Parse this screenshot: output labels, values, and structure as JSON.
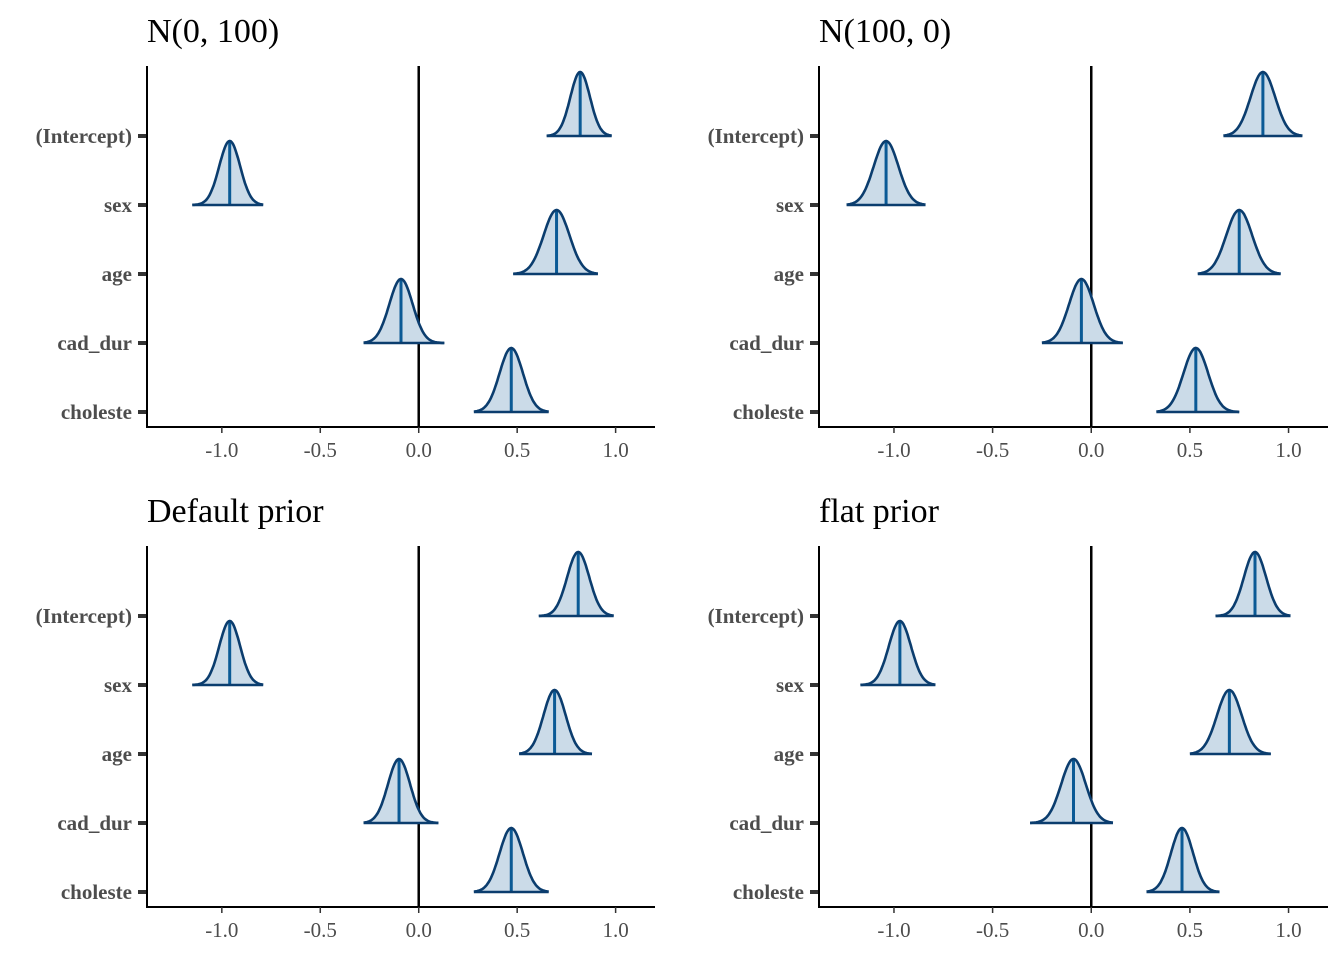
{
  "colors": {
    "fill": "#cbdbe8",
    "outline": "#0b3d6e",
    "median": "#0b5a95"
  },
  "chart_data": [
    {
      "type": "ridgeline",
      "title": "N(0, 100)",
      "categories": [
        "(Intercept)",
        "sex",
        "age",
        "cad_dur",
        "choleste"
      ],
      "xticks": [
        "-1.0",
        "-0.5",
        "0.0",
        "0.5",
        "1.0"
      ],
      "xlim": [
        -1.38,
        1.2
      ],
      "vline": 0.0,
      "distributions": [
        {
          "category": "(Intercept)",
          "median": 0.82,
          "min": 0.65,
          "max": 0.98
        },
        {
          "category": "sex",
          "median": -0.96,
          "min": -1.15,
          "max": -0.79
        },
        {
          "category": "age",
          "median": 0.7,
          "min": 0.48,
          "max": 0.91
        },
        {
          "category": "cad_dur",
          "median": -0.09,
          "min": -0.28,
          "max": 0.13
        },
        {
          "category": "choleste",
          "median": 0.47,
          "min": 0.28,
          "max": 0.66
        }
      ]
    },
    {
      "type": "ridgeline",
      "title": "N(100, 0)",
      "categories": [
        "(Intercept)",
        "sex",
        "age",
        "cad_dur",
        "choleste"
      ],
      "xticks": [
        "-1.0",
        "-0.5",
        "0.0",
        "0.5",
        "1.0"
      ],
      "xlim": [
        -1.38,
        1.2
      ],
      "vline": 0.0,
      "distributions": [
        {
          "category": "(Intercept)",
          "median": 0.87,
          "min": 0.67,
          "max": 1.07
        },
        {
          "category": "sex",
          "median": -1.04,
          "min": -1.24,
          "max": -0.84
        },
        {
          "category": "age",
          "median": 0.75,
          "min": 0.54,
          "max": 0.96
        },
        {
          "category": "cad_dur",
          "median": -0.05,
          "min": -0.25,
          "max": 0.16
        },
        {
          "category": "choleste",
          "median": 0.53,
          "min": 0.33,
          "max": 0.75
        }
      ]
    },
    {
      "type": "ridgeline",
      "title": "Default prior",
      "categories": [
        "(Intercept)",
        "sex",
        "age",
        "cad_dur",
        "choleste"
      ],
      "xticks": [
        "-1.0",
        "-0.5",
        "0.0",
        "0.5",
        "1.0"
      ],
      "xlim": [
        -1.38,
        1.2
      ],
      "vline": 0.0,
      "distributions": [
        {
          "category": "(Intercept)",
          "median": 0.81,
          "min": 0.61,
          "max": 0.99
        },
        {
          "category": "sex",
          "median": -0.96,
          "min": -1.15,
          "max": -0.79
        },
        {
          "category": "age",
          "median": 0.69,
          "min": 0.51,
          "max": 0.88
        },
        {
          "category": "cad_dur",
          "median": -0.1,
          "min": -0.28,
          "max": 0.1
        },
        {
          "category": "choleste",
          "median": 0.47,
          "min": 0.28,
          "max": 0.66
        }
      ]
    },
    {
      "type": "ridgeline",
      "title": "flat prior",
      "categories": [
        "(Intercept)",
        "sex",
        "age",
        "cad_dur",
        "choleste"
      ],
      "xticks": [
        "-1.0",
        "-0.5",
        "0.0",
        "0.5",
        "1.0"
      ],
      "xlim": [
        -1.38,
        1.2
      ],
      "vline": 0.0,
      "distributions": [
        {
          "category": "(Intercept)",
          "median": 0.83,
          "min": 0.63,
          "max": 1.01
        },
        {
          "category": "sex",
          "median": -0.97,
          "min": -1.17,
          "max": -0.79
        },
        {
          "category": "age",
          "median": 0.7,
          "min": 0.5,
          "max": 0.91
        },
        {
          "category": "cad_dur",
          "median": -0.09,
          "min": -0.31,
          "max": 0.11
        },
        {
          "category": "choleste",
          "median": 0.46,
          "min": 0.28,
          "max": 0.65
        }
      ]
    }
  ]
}
